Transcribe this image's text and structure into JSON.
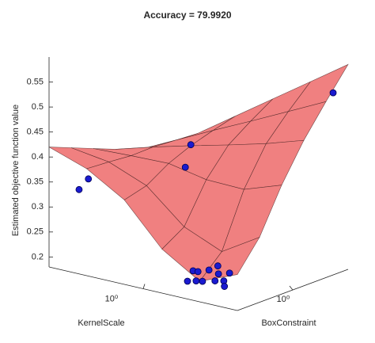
{
  "chart_data": {
    "type": "surface3d",
    "title": "Accuracy = 79.9920",
    "xlabel": "KernelScale",
    "ylabel": "BoxConstraint",
    "zlabel": "Estimated objective function value",
    "xscale": "log",
    "yscale": "log",
    "xlim": [
      0.001,
      1000
    ],
    "ylim": [
      0.001,
      1000
    ],
    "zlim": [
      0.18,
      0.6
    ],
    "xticks": [
      {
        "value": 1,
        "label": "10⁰"
      }
    ],
    "yticks": [
      {
        "value": 1,
        "label": "10⁰"
      }
    ],
    "zticks": [
      0.2,
      0.25,
      0.3,
      0.35,
      0.4,
      0.45,
      0.5,
      0.55
    ],
    "surface": {
      "color": "#f08080",
      "edgecolor": "#3a1a1a",
      "x": [
        0.001,
        0.0158,
        0.251,
        3.98,
        63.1,
        1000
      ],
      "y": [
        0.001,
        0.0158,
        0.251,
        3.98,
        63.1,
        1000
      ],
      "z": [
        [
          0.252,
          0.221,
          0.268,
          0.349,
          0.394,
          0.42
        ],
        [
          0.31,
          0.264,
          0.296,
          0.361,
          0.391,
          0.402
        ],
        [
          0.398,
          0.372,
          0.374,
          0.389,
          0.387,
          0.384
        ],
        [
          0.471,
          0.447,
          0.427,
          0.408,
          0.388,
          0.366
        ],
        [
          0.532,
          0.495,
          0.458,
          0.422,
          0.385,
          0.348
        ],
        [
          0.59,
          0.538,
          0.486,
          0.434,
          0.382,
          0.33
        ]
      ]
    },
    "points": {
      "color": "#1a1ad0",
      "x": [
        0.002,
        3.98,
        3.98,
        126,
        166,
        0.05,
        0.03,
        0.1,
        0.08,
        0.02,
        0.06,
        0.15,
        0.04,
        0.01,
        0.2,
        0.12,
        0.07
      ],
      "y": [
        501,
        2.0,
        3.98,
        0.004,
        0.002,
        0.01,
        0.02,
        0.005,
        0.05,
        0.03,
        0.1,
        0.02,
        0.2,
        0.01,
        0.06,
        0.3,
        0.008
      ],
      "z": [
        0.533,
        0.369,
        0.41,
        0.361,
        0.342,
        0.2,
        0.2,
        0.2,
        0.21,
        0.2,
        0.2,
        0.21,
        0.2,
        0.2,
        0.2,
        0.205,
        0.2
      ]
    }
  }
}
